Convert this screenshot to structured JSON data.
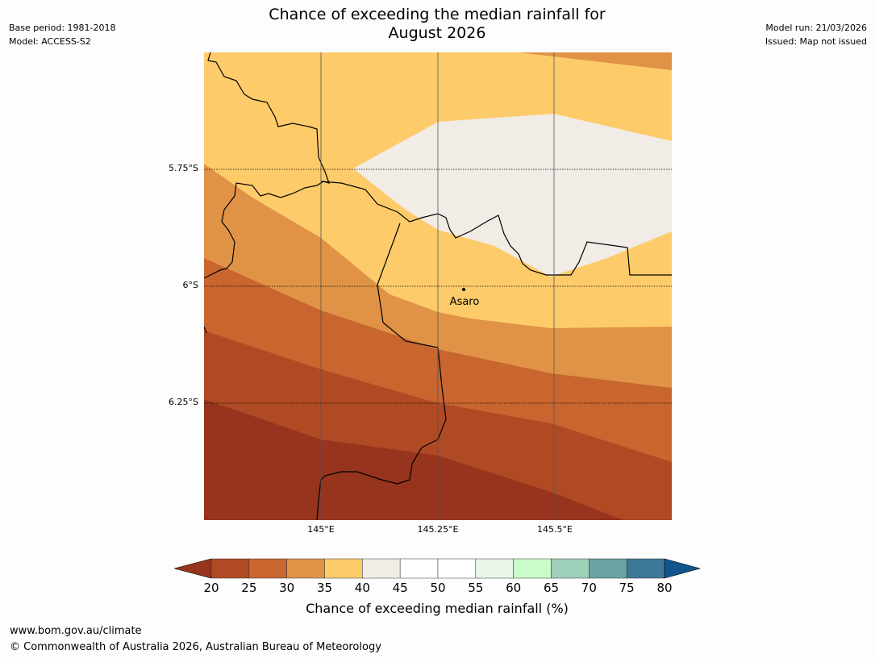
{
  "title": {
    "line1": "Chance of exceeding the median rainfall for",
    "line2": "August 2026"
  },
  "meta_left": {
    "base_period": "Base period: 1981-2018",
    "model": "Model: ACCESS-S2"
  },
  "meta_right": {
    "model_run": "Model run: 21/03/2026",
    "issued": "Issued: Map not issued"
  },
  "map": {
    "lat_labels": [
      "5.75°S",
      "6°S",
      "6.25°S"
    ],
    "lon_labels": [
      "145°E",
      "145.25°E",
      "145.5°E"
    ],
    "place": {
      "name": "Asaro"
    }
  },
  "colorbar": {
    "ticks": [
      "20",
      "25",
      "30",
      "35",
      "40",
      "45",
      "50",
      "55",
      "60",
      "65",
      "70",
      "75",
      "80"
    ],
    "colors": [
      "#b04a24",
      "#c9652f",
      "#e09347",
      "#fecb6a",
      "#f1ece6",
      "#ffffff",
      "#ffffff",
      "#e8f5e8",
      "#c8fcc8",
      "#9fd0b9",
      "#6aa3a3",
      "#3e7898"
    ],
    "under_color": "#97341e",
    "over_color": "#11548e",
    "label": "Chance of exceeding median rainfall (%)"
  },
  "footer": {
    "url": "www.bom.gov.au/climate",
    "copyright": "© Commonwealth of Australia 2026, Australian Bureau of Meteorology"
  }
}
